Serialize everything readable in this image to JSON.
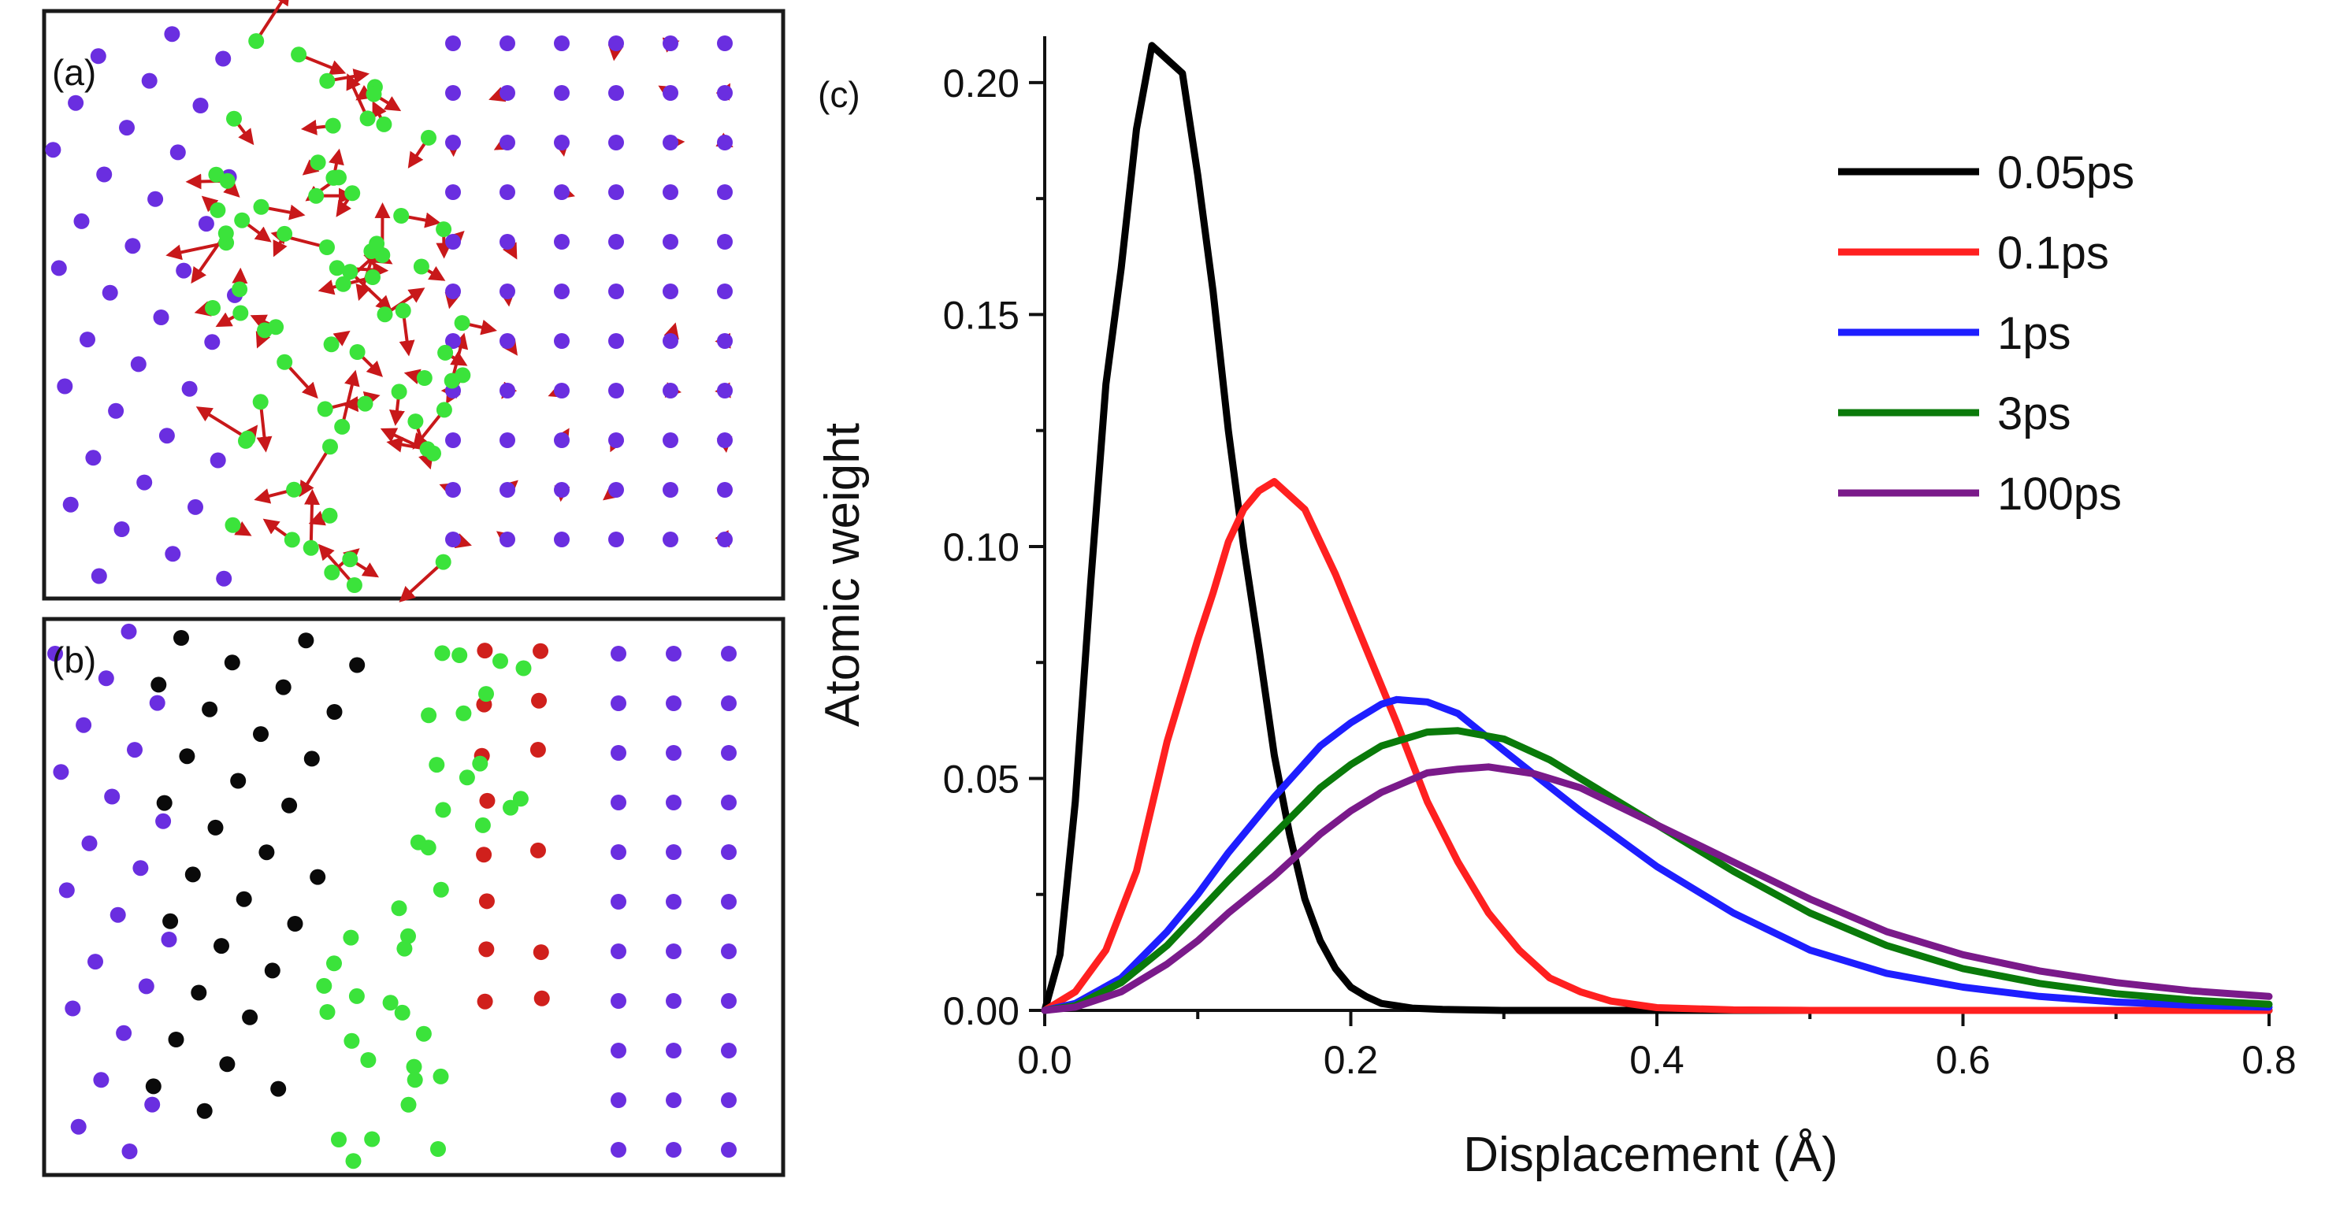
{
  "panels": {
    "a": {
      "label": "(a)"
    },
    "b": {
      "label": "(b)"
    }
  },
  "colors": {
    "purple_atom": "#6a2ee0",
    "green_atom": "#3be33b",
    "red_atom": "#d0201c",
    "black_atom": "#0a0a0a",
    "arrow": "#c8181a"
  },
  "chart_data": {
    "type": "line",
    "panel_label": "(c)",
    "title": "",
    "xlabel": "Displacement (Å)",
    "ylabel": "Atomic weight",
    "xlim": [
      0,
      0.8
    ],
    "ylim": [
      0,
      0.21
    ],
    "xticks": [
      0.0,
      0.2,
      0.4,
      0.6,
      0.8
    ],
    "xtick_labels": [
      "0.0",
      "0.2",
      "0.4",
      "0.6",
      "0.8"
    ],
    "yticks": [
      0.0,
      0.05,
      0.1,
      0.15,
      0.2
    ],
    "ytick_labels": [
      "0.00",
      "0.05",
      "0.10",
      "0.15",
      "0.20"
    ],
    "grid": false,
    "legend_position": "top-right",
    "series": [
      {
        "name": "0.05ps",
        "color": "#000000",
        "x": [
          0,
          0.01,
          0.02,
          0.03,
          0.04,
          0.05,
          0.06,
          0.07,
          0.08,
          0.09,
          0.1,
          0.11,
          0.12,
          0.13,
          0.14,
          0.15,
          0.16,
          0.17,
          0.18,
          0.19,
          0.2,
          0.21,
          0.22,
          0.23,
          0.24,
          0.26,
          0.3,
          0.4,
          0.8
        ],
        "y": [
          0,
          0.012,
          0.045,
          0.092,
          0.135,
          0.16,
          0.19,
          0.208,
          0.205,
          0.202,
          0.18,
          0.155,
          0.125,
          0.1,
          0.078,
          0.055,
          0.038,
          0.024,
          0.015,
          0.009,
          0.005,
          0.003,
          0.0015,
          0.001,
          0.0005,
          0.0002,
          0.0,
          0.0,
          0.0
        ]
      },
      {
        "name": "0.1ps",
        "color": "#ff2020",
        "x": [
          0,
          0.02,
          0.04,
          0.06,
          0.08,
          0.1,
          0.11,
          0.12,
          0.13,
          0.14,
          0.15,
          0.17,
          0.19,
          0.21,
          0.23,
          0.25,
          0.27,
          0.29,
          0.31,
          0.33,
          0.35,
          0.37,
          0.4,
          0.45,
          0.5,
          0.8
        ],
        "y": [
          0,
          0.004,
          0.013,
          0.03,
          0.058,
          0.08,
          0.09,
          0.101,
          0.108,
          0.112,
          0.114,
          0.108,
          0.094,
          0.078,
          0.062,
          0.045,
          0.032,
          0.021,
          0.013,
          0.007,
          0.004,
          0.002,
          0.0006,
          0.0001,
          0.0,
          0.0
        ]
      },
      {
        "name": "1ps",
        "color": "#1e1eff",
        "x": [
          0,
          0.02,
          0.05,
          0.08,
          0.1,
          0.12,
          0.15,
          0.18,
          0.2,
          0.22,
          0.23,
          0.25,
          0.27,
          0.3,
          0.35,
          0.4,
          0.45,
          0.5,
          0.55,
          0.6,
          0.65,
          0.7,
          0.75,
          0.8
        ],
        "y": [
          0,
          0.0015,
          0.007,
          0.017,
          0.025,
          0.034,
          0.046,
          0.057,
          0.062,
          0.066,
          0.067,
          0.0665,
          0.064,
          0.056,
          0.043,
          0.031,
          0.021,
          0.013,
          0.008,
          0.005,
          0.003,
          0.0018,
          0.0011,
          0.0007
        ]
      },
      {
        "name": "3ps",
        "color": "#0a7a0a",
        "x": [
          0,
          0.02,
          0.05,
          0.08,
          0.1,
          0.12,
          0.15,
          0.18,
          0.2,
          0.22,
          0.25,
          0.27,
          0.3,
          0.33,
          0.35,
          0.4,
          0.45,
          0.5,
          0.55,
          0.6,
          0.65,
          0.7,
          0.75,
          0.8
        ],
        "y": [
          0,
          0.001,
          0.006,
          0.014,
          0.021,
          0.028,
          0.038,
          0.048,
          0.053,
          0.057,
          0.06,
          0.0603,
          0.0585,
          0.054,
          0.05,
          0.04,
          0.03,
          0.021,
          0.014,
          0.009,
          0.0058,
          0.0036,
          0.0022,
          0.0013
        ]
      },
      {
        "name": "100ps",
        "color": "#7a1a8a",
        "x": [
          0,
          0.02,
          0.05,
          0.08,
          0.1,
          0.12,
          0.15,
          0.18,
          0.2,
          0.22,
          0.25,
          0.27,
          0.29,
          0.32,
          0.35,
          0.4,
          0.45,
          0.5,
          0.55,
          0.6,
          0.65,
          0.7,
          0.75,
          0.8
        ],
        "y": [
          0,
          0.0007,
          0.004,
          0.01,
          0.015,
          0.021,
          0.029,
          0.038,
          0.043,
          0.047,
          0.0512,
          0.052,
          0.0525,
          0.051,
          0.048,
          0.04,
          0.032,
          0.024,
          0.017,
          0.012,
          0.0085,
          0.006,
          0.0042,
          0.003
        ]
      }
    ]
  }
}
